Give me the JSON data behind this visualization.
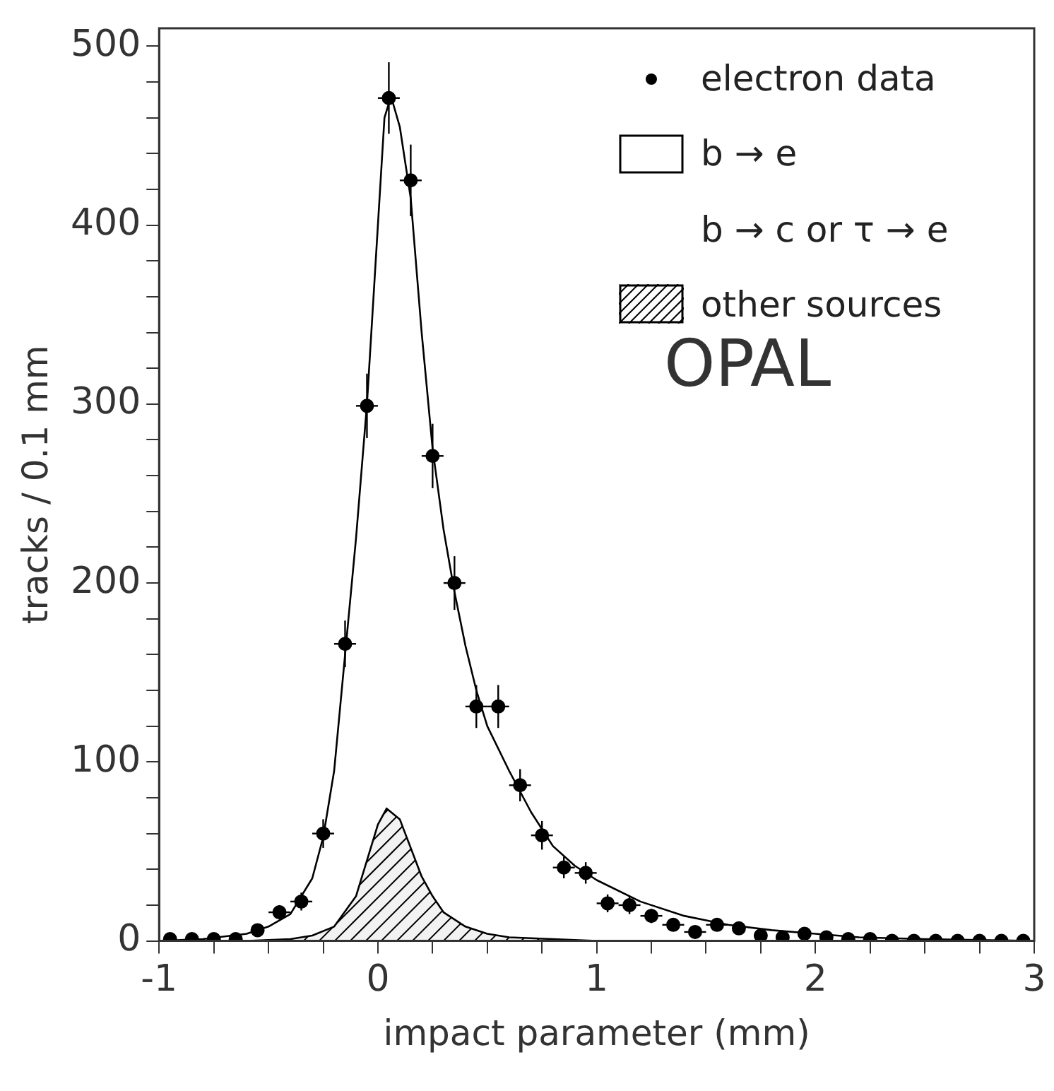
{
  "chart_data": {
    "type": "scatter",
    "xlabel": "impact parameter (mm)",
    "ylabel": "tracks / 0.1 mm",
    "xlim": [
      -1,
      3
    ],
    "ylim": [
      0,
      510
    ],
    "xticks": [
      -1,
      {
        "value": -0.75,
        "label": null
      },
      {
        "value": -0.5,
        "label": null
      },
      {
        "value": -0.25,
        "label": null
      },
      0,
      {
        "value": 0.25,
        "label": null
      },
      {
        "value": 0.5,
        "label": null
      },
      {
        "value": 0.75,
        "label": null
      },
      1,
      {
        "value": 1.25,
        "label": null
      },
      {
        "value": 1.5,
        "label": null
      },
      {
        "value": 1.75,
        "label": null
      },
      2,
      {
        "value": 2.25,
        "label": null
      },
      {
        "value": 2.5,
        "label": null
      },
      {
        "value": 2.75,
        "label": null
      },
      3
    ],
    "yticks": [
      0,
      {
        "value": 20,
        "label": null
      },
      {
        "value": 40,
        "label": null
      },
      {
        "value": 60,
        "label": null
      },
      {
        "value": 80,
        "label": null
      },
      100,
      {
        "value": 120,
        "label": null
      },
      {
        "value": 140,
        "label": null
      },
      {
        "value": 160,
        "label": null
      },
      {
        "value": 180,
        "label": null
      },
      200,
      {
        "value": 220,
        "label": null
      },
      {
        "value": 240,
        "label": null
      },
      {
        "value": 260,
        "label": null
      },
      {
        "value": 280,
        "label": null
      },
      300,
      {
        "value": 320,
        "label": null
      },
      {
        "value": 340,
        "label": null
      },
      {
        "value": 360,
        "label": null
      },
      {
        "value": 380,
        "label": null
      },
      400,
      {
        "value": 420,
        "label": null
      },
      {
        "value": 440,
        "label": null
      },
      {
        "value": 460,
        "label": null
      },
      {
        "value": 480,
        "label": null
      },
      500
    ],
    "grid": false,
    "legend": "top right",
    "annotations": [
      "b → c or τ → e",
      "OPAL"
    ],
    "series": [
      {
        "name": "electron data",
        "type": "scatter",
        "marker": "circle",
        "color": "#000000",
        "x": [
          -0.95,
          -0.85,
          -0.75,
          -0.65,
          -0.55,
          -0.45,
          -0.35,
          -0.25,
          -0.15,
          -0.05,
          0.05,
          0.15,
          0.25,
          0.35,
          0.45,
          0.55,
          0.65,
          0.75,
          0.85,
          0.95,
          1.05,
          1.15,
          1.25,
          1.35,
          1.45,
          1.55,
          1.65,
          1.75,
          1.85,
          1.95,
          2.05,
          2.15,
          2.25,
          2.35,
          2.45,
          2.55,
          2.65,
          2.75,
          2.85,
          2.95
        ],
        "values": [
          1,
          1,
          1,
          1,
          6,
          16,
          22,
          60,
          166,
          299,
          471,
          425,
          271,
          200,
          131,
          131,
          87,
          59,
          41,
          38,
          21,
          20,
          14,
          9,
          5,
          9,
          7,
          3,
          2,
          4,
          2,
          1,
          1,
          0,
          0,
          0,
          0,
          0,
          0,
          0
        ],
        "errors": [
          null,
          null,
          null,
          null,
          null,
          4,
          5,
          8,
          13,
          18,
          20,
          20,
          18,
          15,
          12,
          12,
          9,
          8,
          6,
          6,
          5,
          5,
          4,
          3,
          2,
          3,
          3,
          2,
          null,
          2,
          null,
          null,
          null,
          null,
          null,
          null,
          null,
          null,
          null,
          null
        ],
        "xerrors": [
          null,
          null,
          null,
          null,
          null,
          0.05,
          0.05,
          0.05,
          0.05,
          0.05,
          0.05,
          0.05,
          0.05,
          0.05,
          0.05,
          0.05,
          0.05,
          0.05,
          0.05,
          0.05,
          0.05,
          0.05,
          0.05,
          0.05,
          0.05,
          0.05,
          null,
          null,
          null,
          null,
          null,
          null,
          null,
          null,
          null,
          null,
          null,
          null,
          null,
          null
        ]
      },
      {
        "name": "b → e",
        "type": "line",
        "color": "#000000",
        "x": [
          -1,
          -0.8,
          -0.6,
          -0.5,
          -0.4,
          -0.3,
          -0.25,
          -0.2,
          -0.15,
          -0.1,
          -0.05,
          0,
          0.03,
          0.06,
          0.1,
          0.15,
          0.2,
          0.25,
          0.3,
          0.35,
          0.4,
          0.45,
          0.5,
          0.6,
          0.7,
          0.8,
          0.9,
          1,
          1.2,
          1.4,
          1.6,
          1.8,
          2,
          2.2,
          2.5,
          3
        ],
        "values": [
          0,
          1,
          4,
          8,
          15,
          35,
          58,
          95,
          160,
          225,
          300,
          400,
          460,
          472,
          455,
          415,
          340,
          275,
          230,
          195,
          165,
          140,
          120,
          95,
          72,
          53,
          42,
          34,
          22,
          14,
          9,
          6,
          4,
          2,
          1,
          0
        ]
      },
      {
        "name": "other sources",
        "type": "area",
        "color": "#000000",
        "x": [
          -1,
          -0.6,
          -0.4,
          -0.3,
          -0.2,
          -0.1,
          -0.05,
          0,
          0.04,
          0.1,
          0.15,
          0.2,
          0.25,
          0.3,
          0.4,
          0.5,
          0.6,
          0.8,
          1,
          3
        ],
        "values": [
          0,
          0,
          1,
          3,
          8,
          25,
          45,
          65,
          74,
          68,
          52,
          36,
          25,
          16,
          8,
          4,
          2,
          1,
          0,
          0
        ]
      }
    ]
  }
}
